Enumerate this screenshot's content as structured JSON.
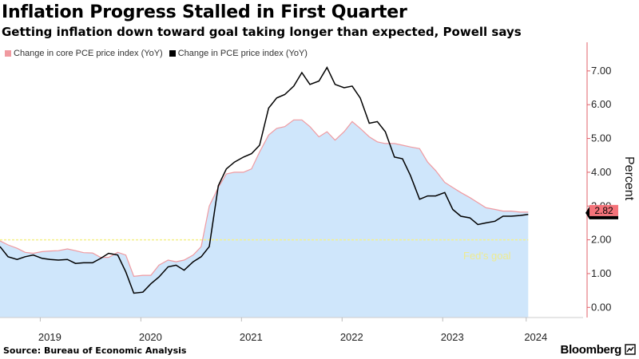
{
  "header": {
    "title": "Inflation Progress Stalled in First Quarter",
    "subtitle": "Getting inflation down toward goal taking longer than expected, Powell says"
  },
  "footer": {
    "source": "Source: Bureau of Economic Analysis",
    "brand": "Bloomberg"
  },
  "colors": {
    "core_fill": "#cfe6fb",
    "core_line": "#f09aa0",
    "pce_line": "#000000",
    "goal_line": "#f5f08a",
    "axis": "#e06068",
    "last_badge": "#f4737a"
  },
  "chart_data": {
    "type": "area",
    "title": "Inflation Progress Stalled in First Quarter",
    "ylabel": "Percent",
    "ylim": [
      -0.3,
      7.8
    ],
    "xlim": [
      2018.6,
      2024.3
    ],
    "yticks": [
      0,
      1,
      2,
      3,
      4,
      5,
      6,
      7
    ],
    "ytick_labels": [
      "0.00",
      "1.00",
      "2.00",
      "3.00",
      "4.00",
      "5.00",
      "6.00",
      "7.00"
    ],
    "xticks": [
      2019.0,
      2020.0,
      2021.0,
      2022.0,
      2023.0,
      2023.83
    ],
    "xtick_labels": [
      "2019",
      "2020",
      "2021",
      "2022",
      "2023",
      "2024"
    ],
    "goal": {
      "value": 2.0,
      "label": "Fed's goal"
    },
    "last_value_label": "2.82",
    "x": [
      2018.6,
      2018.68,
      2018.77,
      2018.85,
      2018.93,
      2019.02,
      2019.1,
      2019.18,
      2019.27,
      2019.35,
      2019.43,
      2019.52,
      2019.6,
      2019.68,
      2019.77,
      2019.85,
      2019.93,
      2020.02,
      2020.1,
      2020.18,
      2020.27,
      2020.35,
      2020.43,
      2020.52,
      2020.6,
      2020.68,
      2020.77,
      2020.85,
      2020.93,
      2021.02,
      2021.1,
      2021.18,
      2021.27,
      2021.35,
      2021.43,
      2021.52,
      2021.6,
      2021.68,
      2021.77,
      2021.85,
      2021.93,
      2022.02,
      2022.1,
      2022.18,
      2022.27,
      2022.35,
      2022.43,
      2022.52,
      2022.6,
      2022.68,
      2022.77,
      2022.85,
      2022.93,
      2023.02,
      2023.1,
      2023.18,
      2023.27,
      2023.35,
      2023.43,
      2023.52,
      2023.6,
      2023.68,
      2023.77,
      2023.85
    ],
    "series": [
      {
        "name": "Change in core PCE price index (YoY)",
        "values": [
          1.97,
          1.85,
          1.75,
          1.63,
          1.6,
          1.65,
          1.67,
          1.68,
          1.73,
          1.68,
          1.62,
          1.61,
          1.48,
          1.48,
          1.63,
          1.55,
          0.92,
          0.95,
          0.95,
          1.25,
          1.4,
          1.35,
          1.4,
          1.55,
          1.8,
          3.0,
          3.55,
          3.95,
          4.0,
          4.0,
          4.1,
          4.6,
          5.1,
          5.3,
          5.35,
          5.55,
          5.55,
          5.35,
          5.05,
          5.2,
          4.95,
          5.2,
          5.5,
          5.3,
          5.05,
          4.9,
          4.85,
          4.85,
          4.8,
          4.75,
          4.7,
          4.3,
          4.05,
          3.7,
          3.55,
          3.4,
          3.25,
          3.1,
          2.95,
          2.9,
          2.85,
          2.85,
          2.82,
          2.82
        ]
      },
      {
        "name": "Change in PCE price index (YoY)",
        "values": [
          1.8,
          1.5,
          1.42,
          1.5,
          1.55,
          1.45,
          1.42,
          1.4,
          1.42,
          1.3,
          1.32,
          1.32,
          1.45,
          1.6,
          1.55,
          1.05,
          0.42,
          0.45,
          0.7,
          0.9,
          1.2,
          1.25,
          1.1,
          1.35,
          1.5,
          1.8,
          3.6,
          4.1,
          4.3,
          4.45,
          4.55,
          4.8,
          5.9,
          6.2,
          6.3,
          6.55,
          6.95,
          6.6,
          6.7,
          7.1,
          6.6,
          6.5,
          6.55,
          6.2,
          5.45,
          5.5,
          5.2,
          4.45,
          4.4,
          3.9,
          3.2,
          3.3,
          3.3,
          3.4,
          2.9,
          2.7,
          2.65,
          2.45,
          2.5,
          2.55,
          2.7,
          2.7,
          2.72,
          2.75
        ]
      }
    ]
  }
}
